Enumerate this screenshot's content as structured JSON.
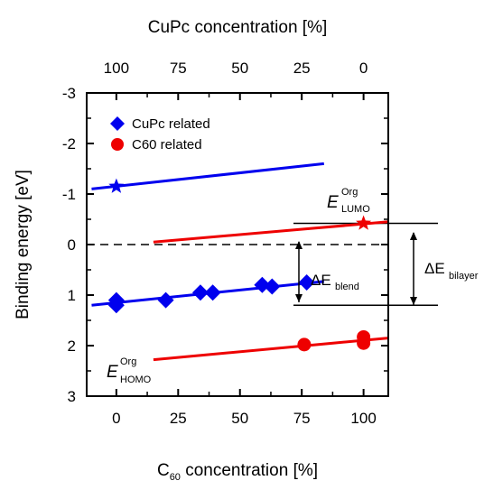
{
  "chart_data": {
    "type": "scatter",
    "xlabel_main": "C",
    "xlabel_sub": "60",
    "xlabel_rest": " concentration [%]",
    "x2label": "CuPc concentration [%]",
    "ylabel": "Binding energy [eV]",
    "xlim": [
      -12,
      110
    ],
    "ylim": [
      3,
      -3
    ],
    "xticks": [
      0,
      25,
      50,
      75,
      100
    ],
    "x2ticks": [
      {
        "x": 0,
        "label": "100"
      },
      {
        "x": 25,
        "label": "75"
      },
      {
        "x": 50,
        "label": "50"
      },
      {
        "x": 75,
        "label": "25"
      },
      {
        "x": 100,
        "label": "0"
      }
    ],
    "yticks": [
      {
        "y": -3,
        "label": "-3"
      },
      {
        "y": -2,
        "label": "-2"
      },
      {
        "y": -1,
        "label": "-1"
      },
      {
        "y": 0,
        "label": "0"
      },
      {
        "y": 1,
        "label": "1"
      },
      {
        "y": 2,
        "label": "2"
      },
      {
        "y": 3,
        "label": "3"
      }
    ],
    "legend": {
      "position": "top-left",
      "items": [
        {
          "label": "CuPc related",
          "marker": "diamond",
          "color": "#0000ee"
        },
        {
          "label": "C60 related",
          "marker": "circle",
          "color": "#ee0000"
        }
      ]
    },
    "series": [
      {
        "name": "CuPc related",
        "color": "#0000ee",
        "marker": "diamond",
        "points": [
          {
            "x": 0,
            "y": 1.1
          },
          {
            "x": 0,
            "y": 1.2
          },
          {
            "x": 20,
            "y": 1.1
          },
          {
            "x": 34,
            "y": 0.95
          },
          {
            "x": 39,
            "y": 0.95
          },
          {
            "x": 59,
            "y": 0.8
          },
          {
            "x": 63,
            "y": 0.83
          },
          {
            "x": 77,
            "y": 0.75
          }
        ]
      },
      {
        "name": "C60 related",
        "color": "#ee0000",
        "marker": "circle",
        "points": [
          {
            "x": 76,
            "y": 1.98
          },
          {
            "x": 100,
            "y": 1.83
          },
          {
            "x": 100,
            "y": 1.95
          }
        ]
      },
      {
        "name": "LUMO CuPc",
        "color": "#0000ee",
        "marker": "star",
        "points": [
          {
            "x": 0,
            "y": -1.15
          }
        ]
      },
      {
        "name": "LUMO C60",
        "color": "#ee0000",
        "marker": "star",
        "points": [
          {
            "x": 100,
            "y": -0.42
          }
        ]
      }
    ],
    "lines": [
      {
        "color": "#0000ee",
        "x": [
          -10,
          84
        ],
        "y": [
          -1.1,
          -1.6
        ]
      },
      {
        "color": "#ee0000",
        "x": [
          15,
          110
        ],
        "y": [
          -0.05,
          -0.45
        ]
      },
      {
        "color": "#0000ee",
        "x": [
          -10,
          84
        ],
        "y": [
          1.2,
          0.73
        ]
      },
      {
        "color": "#ee0000",
        "x": [
          15,
          110
        ],
        "y": [
          2.28,
          1.85
        ]
      }
    ],
    "reference_lines": {
      "dashed_zero_y": 0,
      "upper_y": -0.42,
      "lower_y": 1.2
    },
    "annotations": {
      "lumo_main": "E",
      "lumo_sup": "Org",
      "lumo_sub": "LUMO",
      "homo_main": "E",
      "homo_sup": "Org",
      "homo_sub": "HOMO",
      "blend_delta": "ΔE",
      "blend_sub": "blend",
      "bilayer_delta": "ΔE",
      "bilayer_sub": "bilayer"
    }
  }
}
